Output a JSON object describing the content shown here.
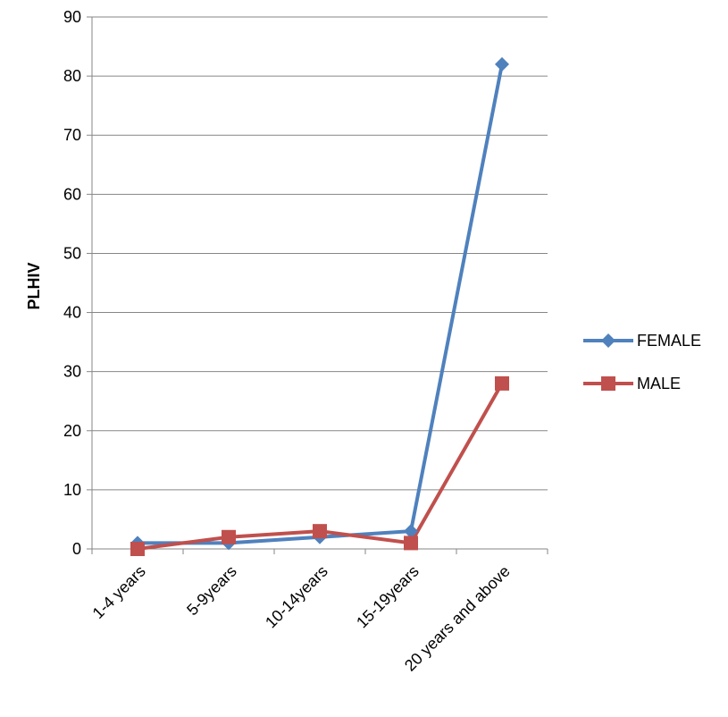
{
  "chart_data": {
    "type": "line",
    "title": "",
    "xlabel": "",
    "ylabel": "PLHIV",
    "ylim": [
      0,
      90
    ],
    "yticks": [
      0,
      10,
      20,
      30,
      40,
      50,
      60,
      70,
      80,
      90
    ],
    "grid": true,
    "legend_position": "right",
    "categories": [
      "1-4 years",
      "5-9years",
      "10-14years",
      "15-19years",
      "20 years and above"
    ],
    "series": [
      {
        "name": "FEMALE",
        "values": [
          1,
          1,
          2,
          3,
          82
        ],
        "color": "#4F81BD",
        "marker": "diamond"
      },
      {
        "name": "MALE",
        "values": [
          0,
          2,
          3,
          1,
          28
        ],
        "color": "#C0504D",
        "marker": "square"
      }
    ]
  }
}
